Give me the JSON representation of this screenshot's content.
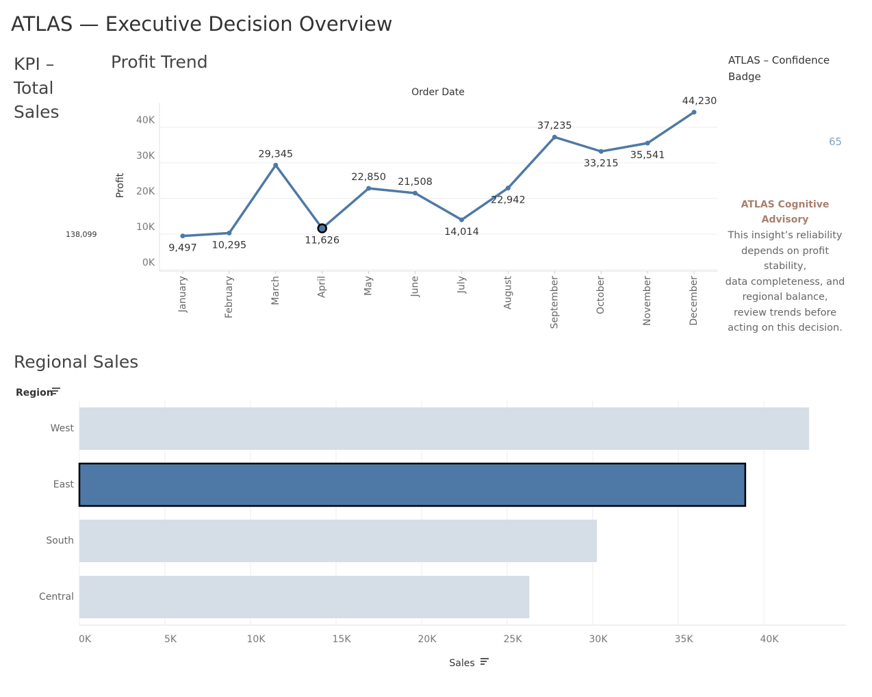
{
  "title": "ATLAS — Executive Decision Overview",
  "kpi": {
    "title": "KPI – Total Sales",
    "value": "138,099"
  },
  "badge": {
    "title": "ATLAS – Confidence Badge",
    "value": 65
  },
  "advisory": {
    "title": "ATLAS Cognitive Advisory",
    "lines": [
      "This insight’s reliability",
      "depends on profit",
      "stability,",
      "data completeness, and",
      "regional balance,",
      "review trends before",
      "acting on this decision."
    ]
  },
  "chart_data": [
    {
      "type": "line",
      "title": "Profit Trend",
      "x_label": "Order Date",
      "y_label": "Profit",
      "categories": [
        "January",
        "February",
        "March",
        "April",
        "May",
        "June",
        "July",
        "August",
        "September",
        "October",
        "November",
        "December"
      ],
      "values": [
        9497,
        10295,
        29345,
        11626,
        22850,
        21508,
        14014,
        22942,
        37235,
        33215,
        35541,
        44230
      ],
      "value_labels": [
        "9,497",
        "10,295",
        "29,345",
        "11,626",
        "22,850",
        "21,508",
        "14,014",
        "22,942",
        "37,235",
        "33,215",
        "35,541",
        "44,230"
      ],
      "color": "#4e79a7",
      "highlight": "April",
      "ylim": [
        0,
        46500
      ],
      "yticks": [
        {
          "value": 0,
          "label": "0K"
        },
        {
          "value": 10000,
          "label": "10K"
        },
        {
          "value": 20000,
          "label": "20K"
        },
        {
          "value": 30000,
          "label": "30K"
        },
        {
          "value": 40000,
          "label": "40K"
        }
      ],
      "grid": true
    },
    {
      "type": "hbar",
      "title": "Regional Sales",
      "x_label": "Sales",
      "y_label": "Region",
      "categories": [
        "West",
        "East",
        "South",
        "Central"
      ],
      "values": [
        42645,
        38914,
        30243,
        26297
      ],
      "colors": [
        "#d5dee6",
        "#4e79a7",
        "#d5dee6",
        "#d5dee6"
      ],
      "highlight": "East",
      "xlim": [
        0,
        44800
      ],
      "xticks": [
        {
          "value": 0,
          "label": "0K"
        },
        {
          "value": 5000,
          "label": "5K"
        },
        {
          "value": 10000,
          "label": "10K"
        },
        {
          "value": 15000,
          "label": "15K"
        },
        {
          "value": 20000,
          "label": "20K"
        },
        {
          "value": 25000,
          "label": "25K"
        },
        {
          "value": 30000,
          "label": "30K"
        },
        {
          "value": 35000,
          "label": "35K"
        },
        {
          "value": 40000,
          "label": "40K"
        }
      ],
      "grid": true
    }
  ]
}
